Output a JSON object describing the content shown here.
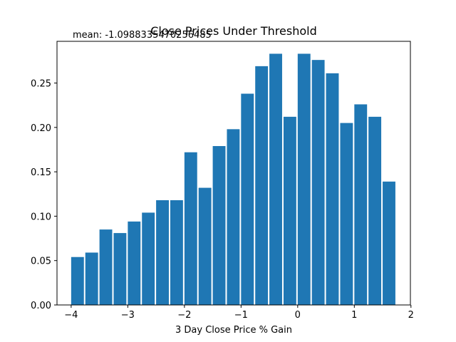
{
  "chart_data": {
    "type": "bar",
    "title": "Close Prices Under Threshold",
    "xlabel": "3 Day Close Price % Gain",
    "ylabel": "",
    "annotation": "mean: -1.0988335470256485",
    "xlim": [
      -4.25,
      1.99
    ],
    "ylim": [
      0,
      0.297
    ],
    "xticks": [
      -4,
      -3,
      -2,
      -1,
      0,
      1,
      2
    ],
    "xtick_labels": [
      "−4",
      "−3",
      "−2",
      "−1",
      "0",
      "1",
      "2"
    ],
    "yticks": [
      0,
      0.05,
      0.1,
      0.15,
      0.2,
      0.25
    ],
    "ytick_labels": [
      "0.00",
      "0.05",
      "0.10",
      "0.15",
      "0.20",
      "0.25"
    ],
    "bin_start": -4.0,
    "bin_width": 0.25,
    "bar_fraction": 0.9,
    "color": "#1f77b4",
    "values": [
      0.054,
      0.059,
      0.085,
      0.081,
      0.094,
      0.104,
      0.118,
      0.118,
      0.172,
      0.132,
      0.179,
      0.198,
      0.238,
      0.269,
      0.283,
      0.212,
      0.283,
      0.276,
      0.261,
      0.205,
      0.226,
      0.212,
      0.139
    ],
    "grid": false,
    "legend": "none"
  }
}
